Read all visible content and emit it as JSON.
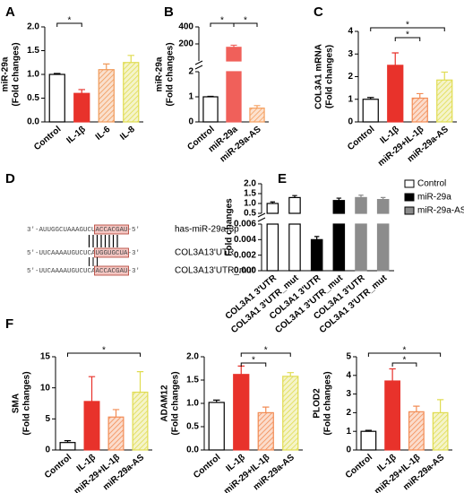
{
  "chart_data": [
    {
      "type": "bar",
      "label": "A",
      "ylabel": [
        "miR-29a",
        "(Fold changes)"
      ],
      "categories": [
        "Control",
        "IL-1β",
        "IL-6",
        "IL-8"
      ],
      "values": [
        1.0,
        0.6,
        1.1,
        1.25
      ],
      "errors": [
        0.02,
        0.08,
        0.12,
        0.15
      ],
      "colors": [
        "#ffffff",
        "#e8322b",
        "#f09a5a",
        "#e0dc50"
      ],
      "hatched": [
        false,
        false,
        true,
        true
      ],
      "ylim": [
        0,
        2
      ],
      "yticks": [
        {
          "value": 0,
          "label": "0.0"
        },
        0.5,
        {
          "value": 1,
          "label": "1.0"
        },
        1.5,
        {
          "value": 2,
          "label": "2.0"
        }
      ],
      "significance": [
        {
          "from": 0,
          "to": 1,
          "label": "*"
        }
      ]
    },
    {
      "type": "bar",
      "label": "B",
      "ylabel": [
        "miR-29a",
        "(Fold changes)"
      ],
      "categories": [
        "Control",
        "miR-29a",
        "miR-29a-AS"
      ],
      "values": [
        1.0,
        160,
        0.55
      ],
      "errors": [
        0.02,
        25,
        0.1
      ],
      "colors": [
        "#ffffff",
        "#f0605a",
        "#f5a060"
      ],
      "hatched": [
        false,
        false,
        true
      ],
      "segments": [
        {
          "ylim": [
            0,
            2
          ],
          "yticks": [
            0,
            1,
            2
          ]
        },
        {
          "ylim": [
            0,
            400
          ],
          "yticks": [
            200,
            400
          ]
        }
      ],
      "significance": [
        {
          "from": 0,
          "to": 1,
          "label": "*"
        },
        {
          "from": 1,
          "to": 2,
          "label": "*"
        }
      ]
    },
    {
      "type": "bar",
      "label": "C",
      "ylabel": [
        "COL3A1 mRNA",
        "(Fold changes)"
      ],
      "categories": [
        "Control",
        "IL-1β",
        "miR-29+IL-1β",
        "miR-29a-AS"
      ],
      "values": [
        1.0,
        2.5,
        1.05,
        1.85
      ],
      "errors": [
        0.08,
        0.55,
        0.2,
        0.35
      ],
      "colors": [
        "#ffffff",
        "#e8322b",
        "#f28c55",
        "#e0dc50"
      ],
      "hatched": [
        false,
        false,
        true,
        true
      ],
      "ylim": [
        0,
        4
      ],
      "yticks": [
        0,
        1,
        2,
        3,
        4
      ],
      "significance": [
        {
          "from": 0,
          "to": 3,
          "label": "*"
        },
        {
          "from": 1,
          "to": 2,
          "label": "*"
        }
      ]
    },
    {
      "type": "bar",
      "label": "E",
      "ylabel": [
        "Fold changes"
      ],
      "categories": [
        "COL3A1 3'UTR",
        "COL3A1 3'UTR_mut",
        "COL3A1 3'UTR",
        "COL3A1 3'UTR_mut",
        "COL3A1 3'UTR",
        "COL3A1 3'UTR_mut"
      ],
      "series": [
        {
          "name": "Control",
          "color": "#ffffff",
          "values": [
            1.0,
            1.3,
            null,
            null,
            null,
            null
          ],
          "errors": [
            0.08,
            0.1,
            null,
            null,
            null,
            null
          ]
        },
        {
          "name": "miR-29a",
          "color": "#000000",
          "values": [
            null,
            null,
            0.004,
            1.15,
            null,
            null
          ],
          "errors": [
            null,
            null,
            0.0004,
            0.12,
            null,
            null
          ]
        },
        {
          "name": "miR-29a-AS",
          "color": "#8c8c8c",
          "values": [
            null,
            null,
            null,
            null,
            1.3,
            1.2
          ],
          "errors": [
            null,
            null,
            null,
            null,
            0.12,
            0.1
          ]
        }
      ],
      "segments": [
        {
          "ylim": [
            0,
            0.006
          ],
          "yticks": [
            {
              "value": 0,
              "label": "0.000"
            },
            {
              "value": 0.002,
              "label": "0.002"
            },
            {
              "value": 0.004,
              "label": "0.004"
            },
            {
              "value": 0.006,
              "label": "0.006"
            }
          ]
        },
        {
          "ylim": [
            0.5,
            2.0
          ],
          "yticks": [
            0.5,
            {
              "value": 1,
              "label": "1.0"
            },
            1.5,
            {
              "value": 2,
              "label": "2.0"
            }
          ]
        }
      ],
      "legend": "right"
    },
    {
      "type": "bar",
      "label": "F",
      "ylabel": [
        "SMA",
        "(Fold changes)"
      ],
      "categories": [
        "Control",
        "IL-1β",
        "miR-29+IL-1β",
        "miR-29a-AS"
      ],
      "values": [
        1.2,
        7.8,
        5.3,
        9.3
      ],
      "errors": [
        0.3,
        4,
        1.2,
        3.3
      ],
      "colors": [
        "#ffffff",
        "#e8322b",
        "#f28c55",
        "#e0dc50"
      ],
      "hatched": [
        false,
        false,
        true,
        true
      ],
      "ylim": [
        0,
        15
      ],
      "yticks": [
        0,
        5,
        10,
        15
      ],
      "significance": [
        {
          "from": 0,
          "to": 3,
          "label": "*"
        }
      ]
    },
    {
      "type": "bar",
      "ylabel": [
        "ADAM12",
        "(Fold changes)"
      ],
      "categories": [
        "Control",
        "IL-1β",
        "miR-29+IL-1β",
        "miR-29a-AS"
      ],
      "values": [
        1.02,
        1.62,
        0.8,
        1.58
      ],
      "errors": [
        0.05,
        0.18,
        0.12,
        0.08
      ],
      "colors": [
        "#ffffff",
        "#e8322b",
        "#f28c55",
        "#e0dc50"
      ],
      "hatched": [
        false,
        false,
        true,
        true
      ],
      "ylim": [
        0,
        2
      ],
      "yticks": [
        {
          "value": 0,
          "label": "0.0"
        },
        0.5,
        {
          "value": 1,
          "label": "1.0"
        },
        1.5,
        {
          "value": 2,
          "label": "2.0"
        }
      ],
      "significance": [
        {
          "from": 1,
          "to": 3,
          "label": "*"
        },
        {
          "from": 1,
          "to": 2,
          "label": "*"
        }
      ]
    },
    {
      "type": "bar",
      "ylabel": [
        "PLOD2",
        "(Fold changes)"
      ],
      "categories": [
        "Control",
        "IL-1β",
        "miR-29+IL-1β",
        "miR-29a-AS"
      ],
      "values": [
        1.0,
        3.7,
        2.05,
        2.0
      ],
      "errors": [
        0.05,
        0.65,
        0.3,
        0.7
      ],
      "colors": [
        "#ffffff",
        "#e8322b",
        "#f28c55",
        "#e0dc50"
      ],
      "hatched": [
        false,
        false,
        true,
        true
      ],
      "ylim": [
        0,
        5
      ],
      "yticks": [
        0,
        1,
        2,
        3,
        4,
        5
      ],
      "significance": [
        {
          "from": 0,
          "to": 3,
          "label": "*"
        },
        {
          "from": 1,
          "to": 2,
          "label": "*"
        }
      ]
    }
  ],
  "diagram": {
    "label": "D",
    "rows": [
      {
        "parts": [
          "3'-AUUGGCUAAAGUCU",
          "ACCACGAU",
          "-5'"
        ],
        "name": "has-miR-29a-3p"
      },
      {
        "parts": [
          "5'-UUCAAAAUGUCUCA",
          "UGGUGCUA",
          "-3'"
        ],
        "name": "COL3A13'UTR"
      },
      {
        "parts": [
          "5'-UUCAAAAUGUCUCA",
          "ACCACGAU",
          "-3'"
        ],
        "name": "COL3A13'UTR_mut"
      }
    ]
  }
}
